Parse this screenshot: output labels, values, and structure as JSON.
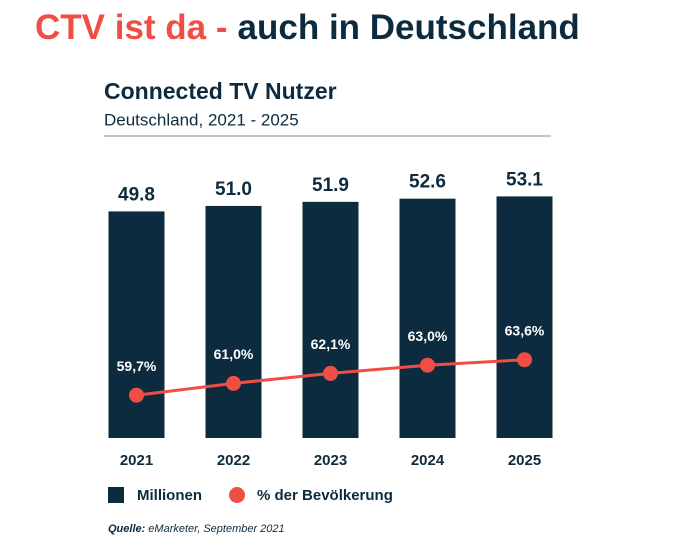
{
  "headline": {
    "highlight": "CTV ist da -",
    "rest": "auch in Deutschland"
  },
  "chart_data": {
    "type": "bar_line",
    "title": "Connected TV Nutzer",
    "subtitle": "Deutschland, 2021 - 2025",
    "categories": [
      "2021",
      "2022",
      "2023",
      "2024",
      "2025"
    ],
    "series": [
      {
        "name": "Millionen",
        "color": "#0d2b3e",
        "type": "bar",
        "values": [
          49.8,
          51.0,
          51.9,
          52.6,
          53.1
        ],
        "value_labels": [
          "49.8",
          "51.0",
          "51.9",
          "52.6",
          "53.1"
        ]
      },
      {
        "name": "% der Bevölkerung",
        "color": "#f04e45",
        "type": "line",
        "axis": "y2",
        "values": [
          59.7,
          61.0,
          62.1,
          63.0,
          63.6
        ],
        "value_labels": [
          "59,7%",
          "61,0%",
          "62,1%",
          "63,0%",
          "63,6%"
        ]
      }
    ],
    "ylim": [
      0,
      60
    ],
    "y2lim": [
      55,
      85
    ],
    "source": {
      "label": "Quelle:",
      "text": "eMarketer, September 2021"
    }
  }
}
